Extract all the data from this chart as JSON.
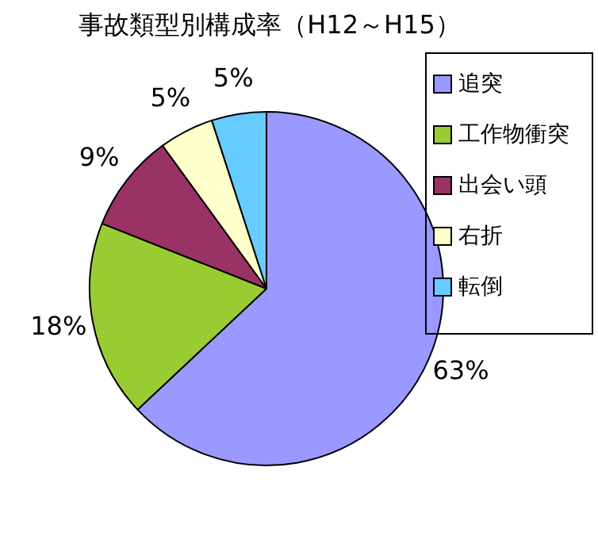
{
  "chart_data": {
    "type": "pie",
    "title": "事故類型別構成率（H12～H15）",
    "categories": [
      "追突",
      "工作物衝突",
      "出会い頭",
      "右折",
      "転倒"
    ],
    "values": [
      63,
      18,
      9,
      5,
      5
    ],
    "colors": [
      "#9999ff",
      "#99cc33",
      "#993366",
      "#ffffcc",
      "#66ccff"
    ],
    "value_labels": [
      "63%",
      "18%",
      "9%",
      "5%",
      "5%"
    ],
    "legend": "right"
  }
}
